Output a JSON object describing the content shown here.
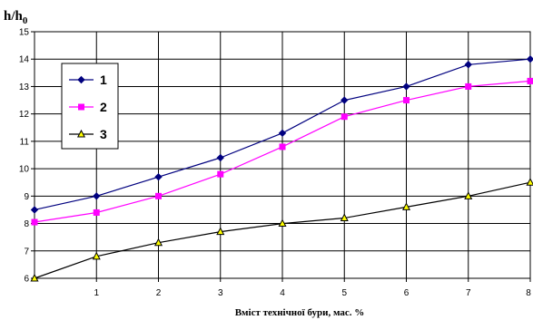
{
  "chart_data": {
    "type": "line",
    "ylabel": "h/h",
    "ylabel_subscript": "0",
    "xlabel": "Вміст технічної бури, мас. %",
    "x": [
      0,
      1,
      2,
      3,
      4,
      5,
      6,
      7,
      8
    ],
    "x_tick_labels": [
      "1",
      "2",
      "3",
      "4",
      "5",
      "6",
      "7",
      "8"
    ],
    "y_tick_labels": [
      "6",
      "7",
      "8",
      "9",
      "10",
      "11",
      "12",
      "13",
      "14",
      "15"
    ],
    "xlim": [
      0,
      8
    ],
    "ylim": [
      6,
      15
    ],
    "grid": true,
    "legend_position": "upper-left",
    "series": [
      {
        "name": "1",
        "color": "#00007f",
        "marker": "diamond",
        "values": [
          8.5,
          9.0,
          9.7,
          10.4,
          11.3,
          12.5,
          13.0,
          13.8,
          14.0
        ]
      },
      {
        "name": "2",
        "color": "#ff00ff",
        "marker": "square",
        "values": [
          8.05,
          8.4,
          9.0,
          9.8,
          10.8,
          11.9,
          12.5,
          13.0,
          13.2
        ]
      },
      {
        "name": "3",
        "color": "#000000",
        "marker": "triangle",
        "marker_fill": "#ffff00",
        "values": [
          6.0,
          6.8,
          7.3,
          7.7,
          8.0,
          8.2,
          8.6,
          9.0,
          9.5
        ]
      }
    ]
  }
}
